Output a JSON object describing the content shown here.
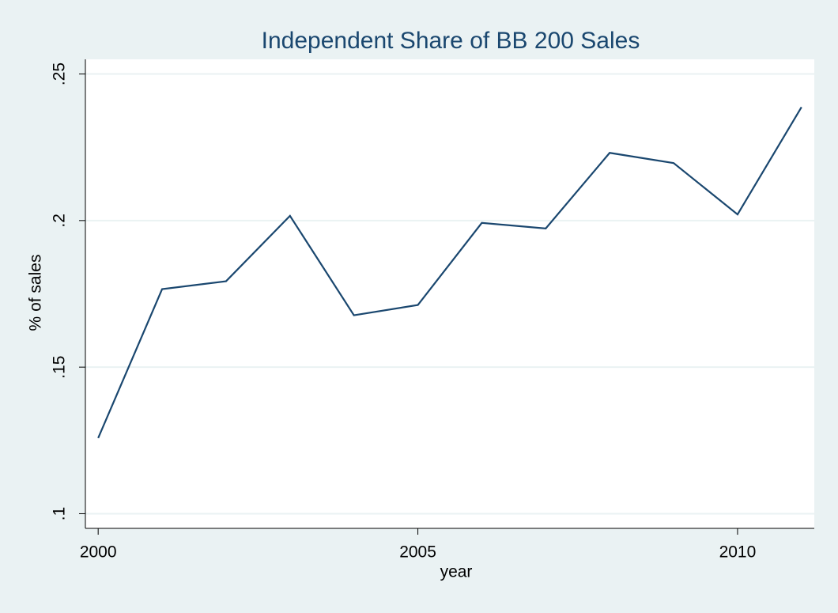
{
  "chart_data": {
    "type": "line",
    "title": "Independent Share of BB 200 Sales",
    "x_label": "year",
    "y_label": "% of sales",
    "x": [
      2000,
      2001,
      2002,
      2003,
      2004,
      2005,
      2006,
      2007,
      2008,
      2009,
      2010,
      2011
    ],
    "series": [
      {
        "name": "share",
        "color": "#1a476f",
        "values": [
          0.1258,
          0.1766,
          0.1793,
          0.2016,
          0.1677,
          0.1712,
          0.1992,
          0.1973,
          0.2231,
          0.2196,
          0.2021,
          0.2387
        ]
      }
    ],
    "xlim": [
      1999.8,
      2011.2
    ],
    "xticks": [
      2000,
      2005,
      2010
    ],
    "ylim": [
      0.095,
      0.255
    ],
    "yticks": [
      {
        "value": 0.1,
        "label": ".1"
      },
      {
        "value": 0.15,
        "label": ".15"
      },
      {
        "value": 0.2,
        "label": ".2"
      },
      {
        "value": 0.25,
        "label": ".25"
      }
    ],
    "grid": true
  }
}
